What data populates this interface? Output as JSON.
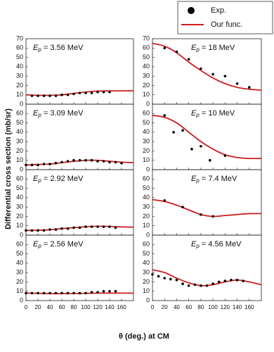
{
  "legend": [
    {
      "name": "Exp.",
      "color": "#000000"
    },
    {
      "name": "Our func.",
      "color": "#cc1f1f"
    }
  ],
  "ylabel": "Differential cross section (mb/sr)",
  "xlabel": "θ (deg.) at CM",
  "chart_data": [
    {
      "type": "scatter",
      "annotation": {
        "symbol": "E",
        "sub": "p",
        "text": " = 3.56 MeV"
      },
      "xlim": [
        0,
        180
      ],
      "ylim": [
        0,
        70
      ],
      "yticks": [
        0,
        10,
        20,
        30,
        40,
        50,
        60,
        70
      ],
      "series": [
        {
          "x": [
            10,
            20,
            30,
            40,
            50,
            60,
            70,
            80,
            90,
            100,
            110,
            120,
            130,
            140
          ],
          "values": [
            9,
            9,
            9,
            9,
            9,
            10,
            10,
            11,
            12,
            12,
            12,
            13,
            13,
            13
          ]
        },
        {
          "x": [
            0,
            20,
            40,
            60,
            80,
            100,
            120,
            140,
            160,
            180
          ],
          "values": [
            10,
            9.5,
            9.5,
            10,
            11.5,
            13,
            14,
            14.2,
            14.3,
            14.3
          ]
        }
      ]
    },
    {
      "type": "scatter",
      "annotation": {
        "symbol": "E",
        "sub": "p",
        "text": " = 18 MeV"
      },
      "xlim": [
        0,
        180
      ],
      "ylim": [
        0,
        70
      ],
      "yticks": [
        0,
        10,
        20,
        30,
        40,
        50,
        60,
        70
      ],
      "series": [
        {
          "x": [
            20,
            40,
            60,
            80,
            100,
            120,
            140,
            160
          ],
          "values": [
            60,
            56,
            48,
            38,
            32,
            30,
            22,
            18
          ]
        },
        {
          "x": [
            0,
            20,
            40,
            60,
            80,
            100,
            120,
            140,
            160,
            180
          ],
          "values": [
            65,
            62,
            55,
            45,
            36,
            28,
            22,
            18,
            16,
            15
          ]
        }
      ]
    },
    {
      "type": "scatter",
      "annotation": {
        "symbol": "E",
        "sub": "p",
        "text": " = 3.09 MeV"
      },
      "xlim": [
        0,
        180
      ],
      "ylim": [
        0,
        70
      ],
      "yticks": [
        0,
        10,
        20,
        30,
        40,
        50,
        60
      ],
      "series": [
        {
          "x": [
            0,
            10,
            20,
            30,
            40,
            50,
            60,
            70,
            80,
            90,
            100,
            110,
            120,
            130,
            140,
            150,
            160
          ],
          "values": [
            5,
            5,
            5,
            6,
            6,
            7,
            8,
            9,
            10,
            10,
            10,
            10,
            9,
            9,
            8,
            8,
            7
          ]
        },
        {
          "x": [
            0,
            20,
            40,
            60,
            80,
            100,
            120,
            140,
            160,
            180
          ],
          "values": [
            5,
            5.5,
            6,
            7.5,
            9,
            10,
            10,
            9,
            8,
            7.5
          ]
        }
      ]
    },
    {
      "type": "scatter",
      "annotation": {
        "symbol": "E",
        "sub": "p",
        "text": " = 10 MeV"
      },
      "xlim": [
        0,
        180
      ],
      "ylim": [
        0,
        70
      ],
      "yticks": [
        0,
        10,
        20,
        30,
        40,
        50,
        60
      ],
      "series": [
        {
          "x": [
            20,
            35,
            50,
            65,
            80,
            95,
            120
          ],
          "values": [
            58,
            40,
            42,
            22,
            25,
            10,
            15
          ]
        },
        {
          "x": [
            0,
            20,
            40,
            60,
            80,
            100,
            120,
            140,
            160,
            180
          ],
          "values": [
            58,
            56,
            50,
            40,
            30,
            22,
            16,
            13,
            12,
            12
          ]
        }
      ]
    },
    {
      "type": "scatter",
      "annotation": {
        "symbol": "E",
        "sub": "p",
        "text": " = 2.92 MeV"
      },
      "xlim": [
        0,
        180
      ],
      "ylim": [
        0,
        70
      ],
      "yticks": [
        0,
        10,
        20,
        30,
        40,
        50,
        60
      ],
      "series": [
        {
          "x": [
            0,
            10,
            20,
            30,
            40,
            50,
            60,
            70,
            80,
            90,
            100,
            110,
            120,
            130,
            140,
            150
          ],
          "values": [
            5,
            5,
            5,
            5,
            6,
            6,
            7,
            7,
            8,
            8,
            9,
            9,
            9,
            9,
            9,
            8
          ]
        },
        {
          "x": [
            0,
            20,
            40,
            60,
            80,
            100,
            120,
            140,
            160,
            180
          ],
          "values": [
            5,
            5.2,
            5.8,
            7,
            8,
            9,
            9.5,
            9.3,
            8.8,
            8.5
          ]
        }
      ]
    },
    {
      "type": "scatter",
      "annotation": {
        "symbol": "E",
        "sub": "p",
        "text": " = 7.4 MeV"
      },
      "xlim": [
        0,
        180
      ],
      "ylim": [
        0,
        70
      ],
      "yticks": [
        0,
        10,
        20,
        30,
        40,
        50,
        60
      ],
      "series": [
        {
          "x": [
            20,
            50,
            80,
            100
          ],
          "values": [
            37,
            30,
            22,
            20
          ]
        },
        {
          "x": [
            0,
            20,
            40,
            60,
            80,
            100,
            120,
            140,
            160,
            180
          ],
          "values": [
            38,
            36,
            32,
            27,
            22,
            20,
            21,
            22,
            23,
            23
          ]
        }
      ]
    },
    {
      "type": "scatter",
      "annotation": {
        "symbol": "E",
        "sub": "p",
        "text": " = 2.56 MeV"
      },
      "xlim": [
        0,
        180
      ],
      "ylim": [
        0,
        70
      ],
      "yticks": [
        0,
        10,
        20,
        30,
        40,
        50,
        60
      ],
      "xticks": [
        0,
        20,
        40,
        60,
        80,
        100,
        120,
        140,
        160
      ],
      "series": [
        {
          "x": [
            0,
            10,
            20,
            30,
            40,
            50,
            60,
            70,
            80,
            90,
            100,
            110,
            120,
            130,
            140,
            150
          ],
          "values": [
            8,
            8,
            8,
            8,
            8,
            8,
            8,
            8,
            8,
            8,
            8,
            9,
            9,
            10,
            10,
            10
          ]
        },
        {
          "x": [
            0,
            20,
            40,
            60,
            80,
            100,
            120,
            140,
            160,
            180
          ],
          "values": [
            8,
            7.8,
            7.5,
            7.5,
            7.6,
            7.8,
            8,
            8,
            8,
            8
          ]
        }
      ]
    },
    {
      "type": "scatter",
      "annotation": {
        "symbol": "E",
        "sub": "p",
        "text": " = 4.56 MeV"
      },
      "xlim": [
        0,
        180
      ],
      "ylim": [
        0,
        70
      ],
      "yticks": [
        0,
        10,
        20,
        30,
        40,
        50,
        60
      ],
      "xticks": [
        0,
        20,
        40,
        60,
        80,
        100,
        120,
        140,
        160
      ],
      "series": [
        {
          "x": [
            0,
            10,
            20,
            30,
            40,
            50,
            60,
            70,
            80,
            90,
            100,
            110,
            120,
            130,
            140,
            150
          ],
          "values": [
            28,
            26,
            24,
            23,
            22,
            18,
            16,
            17,
            16,
            16,
            18,
            20,
            21,
            22,
            22,
            21
          ]
        },
        {
          "x": [
            0,
            20,
            40,
            60,
            80,
            100,
            120,
            140,
            160,
            180
          ],
          "values": [
            33,
            30,
            24,
            19,
            16,
            17,
            20,
            22,
            20,
            17
          ]
        }
      ]
    }
  ]
}
